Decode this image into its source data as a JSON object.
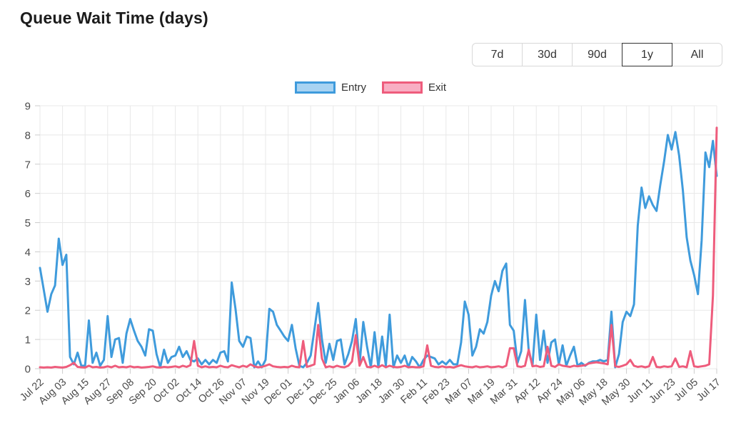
{
  "header": {
    "title": "Queue Wait Time (days)"
  },
  "range_buttons": {
    "options": [
      "7d",
      "30d",
      "90d",
      "1y",
      "All"
    ],
    "selected": "1y",
    "border_color": "#d8d8d8",
    "selected_border_color": "#333333",
    "text_color": "#333333"
  },
  "chart_data": {
    "type": "line",
    "title": "Queue Wait Time (days)",
    "legend_position": "top",
    "grid": true,
    "grid_color": "#e8e8e8",
    "tick_color": "#cccccc",
    "axis_text_color": "#4a4a4a",
    "ylim": [
      0,
      9
    ],
    "y_ticks": [
      0,
      1,
      2,
      3,
      4,
      5,
      6,
      7,
      8,
      9
    ],
    "x_tick_labels": [
      "Jul 22",
      "Aug 03",
      "Aug 15",
      "Aug 27",
      "Sep 08",
      "Sep 20",
      "Oct 02",
      "Oct 14",
      "Oct 26",
      "Nov 07",
      "Nov 19",
      "Dec 01",
      "Dec 13",
      "Dec 25",
      "Jan 06",
      "Jan 18",
      "Jan 30",
      "Feb 11",
      "Feb 23",
      "Mar 07",
      "Mar 19",
      "Mar 31",
      "Apr 12",
      "Apr 24",
      "May 06",
      "May 18",
      "May 30",
      "Jun 11",
      "Jun 23",
      "Jul 05",
      "Jul 17"
    ],
    "x_start": "Jul 22",
    "x_end": "Jul 17",
    "sampling_interval_days": 2,
    "points_per_tick_interval": 6,
    "series": [
      {
        "name": "Entry",
        "color": "#3f9bdc",
        "legend_fill": "#a8d3f2",
        "values": [
          3.45,
          2.7,
          1.95,
          2.55,
          2.85,
          4.45,
          3.55,
          3.9,
          0.4,
          0.15,
          0.55,
          0.1,
          0.1,
          1.65,
          0.2,
          0.55,
          0.1,
          0.3,
          1.8,
          0.4,
          1.0,
          1.05,
          0.2,
          1.2,
          1.7,
          1.3,
          0.95,
          0.75,
          0.45,
          1.35,
          1.3,
          0.5,
          0.05,
          0.65,
          0.2,
          0.4,
          0.45,
          0.75,
          0.4,
          0.6,
          0.3,
          0.25,
          0.35,
          0.15,
          0.3,
          0.15,
          0.3,
          0.2,
          0.55,
          0.6,
          0.25,
          2.95,
          2.05,
          0.95,
          0.75,
          1.1,
          1.05,
          0.05,
          0.25,
          0.05,
          0.3,
          2.05,
          1.95,
          1.5,
          1.3,
          1.1,
          0.95,
          1.5,
          0.7,
          0.1,
          0.05,
          0.2,
          0.45,
          1.35,
          2.25,
          1.0,
          0.2,
          0.85,
          0.3,
          0.95,
          1.0,
          0.15,
          0.5,
          0.95,
          1.7,
          0.15,
          1.6,
          0.75,
          0.05,
          1.25,
          0.05,
          1.1,
          0.1,
          1.85,
          0.05,
          0.45,
          0.2,
          0.45,
          0.05,
          0.4,
          0.25,
          0.05,
          0.3,
          0.45,
          0.4,
          0.35,
          0.15,
          0.25,
          0.15,
          0.3,
          0.15,
          0.15,
          0.9,
          2.3,
          1.85,
          0.45,
          0.75,
          1.35,
          1.2,
          1.6,
          2.5,
          3.0,
          2.65,
          3.35,
          3.6,
          1.5,
          1.3,
          0.2,
          0.6,
          2.35,
          0.6,
          0.1,
          1.85,
          0.3,
          1.3,
          0.2,
          0.9,
          1.0,
          0.15,
          0.8,
          0.1,
          0.45,
          0.75,
          0.1,
          0.2,
          0.1,
          0.2,
          0.25,
          0.25,
          0.3,
          0.25,
          0.3,
          1.95,
          0.05,
          0.5,
          1.6,
          1.95,
          1.8,
          2.2,
          4.9,
          6.2,
          5.5,
          5.9,
          5.6,
          5.4,
          6.3,
          7.1,
          8.0,
          7.5,
          8.1,
          7.3,
          6.1,
          4.5,
          3.7,
          3.2,
          2.55,
          4.4,
          7.4,
          6.9,
          7.8,
          6.6
        ]
      },
      {
        "name": "Exit",
        "color": "#ee5c7c",
        "legend_fill": "#f8aec3",
        "values": [
          0.05,
          0.04,
          0.05,
          0.04,
          0.06,
          0.05,
          0.04,
          0.06,
          0.12,
          0.2,
          0.06,
          0.05,
          0.04,
          0.1,
          0.05,
          0.06,
          0.04,
          0.05,
          0.08,
          0.05,
          0.1,
          0.05,
          0.06,
          0.05,
          0.08,
          0.05,
          0.06,
          0.04,
          0.05,
          0.06,
          0.08,
          0.05,
          0.04,
          0.06,
          0.05,
          0.06,
          0.08,
          0.05,
          0.1,
          0.06,
          0.12,
          0.95,
          0.1,
          0.05,
          0.08,
          0.05,
          0.06,
          0.05,
          0.1,
          0.06,
          0.05,
          0.12,
          0.08,
          0.05,
          0.1,
          0.06,
          0.15,
          0.08,
          0.05,
          0.06,
          0.1,
          0.15,
          0.08,
          0.06,
          0.05,
          0.06,
          0.05,
          0.1,
          0.06,
          0.05,
          0.95,
          0.06,
          0.1,
          0.15,
          1.5,
          0.35,
          0.05,
          0.08,
          0.05,
          0.1,
          0.06,
          0.05,
          0.1,
          0.25,
          1.15,
          0.1,
          0.4,
          0.06,
          0.05,
          0.1,
          0.05,
          0.12,
          0.05,
          0.1,
          0.06,
          0.05,
          0.06,
          0.1,
          0.05,
          0.06,
          0.05,
          0.05,
          0.08,
          0.8,
          0.1,
          0.06,
          0.05,
          0.08,
          0.05,
          0.06,
          0.04,
          0.08,
          0.12,
          0.08,
          0.06,
          0.05,
          0.08,
          0.05,
          0.06,
          0.08,
          0.05,
          0.06,
          0.08,
          0.05,
          0.1,
          0.7,
          0.7,
          0.08,
          0.06,
          0.1,
          0.65,
          0.08,
          0.1,
          0.06,
          0.08,
          0.75,
          0.1,
          0.06,
          0.15,
          0.1,
          0.08,
          0.06,
          0.1,
          0.08,
          0.1,
          0.12,
          0.18,
          0.2,
          0.22,
          0.2,
          0.18,
          0.15,
          1.5,
          0.08,
          0.06,
          0.1,
          0.15,
          0.3,
          0.1,
          0.06,
          0.08,
          0.05,
          0.08,
          0.4,
          0.06,
          0.05,
          0.08,
          0.06,
          0.08,
          0.35,
          0.06,
          0.08,
          0.05,
          0.6,
          0.08,
          0.06,
          0.08,
          0.1,
          0.15,
          2.5,
          8.25
        ]
      }
    ]
  }
}
